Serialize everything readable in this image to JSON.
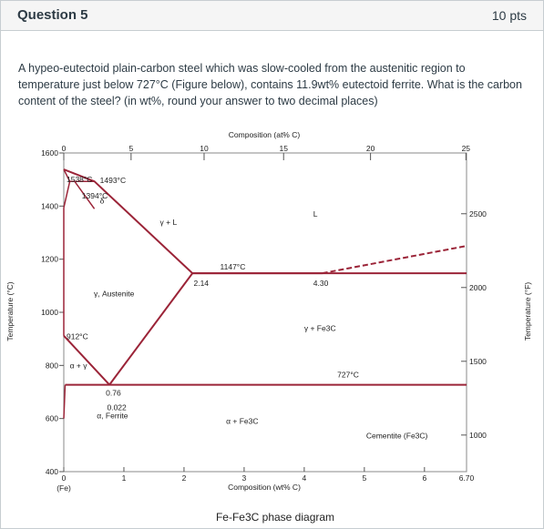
{
  "question": {
    "title": "Question 5",
    "points": "10 pts",
    "text": "A hypeo-eutectoid plain-carbon steel which was slow-cooled from the austenitic region to temperature just below 727°C (Figure below), contains 11.9wt% eutectoid ferrite.  What is the carbon content of the steel? (in wt%,  round your answer to two decimal places)"
  },
  "figure": {
    "caption": "Fe-Fe3C phase diagram",
    "top_axis_title": "Composition (at% C)",
    "bottom_axis_title": "Composition (wt% C)",
    "left_axis_title": "Temperature (°C)",
    "right_axis_title": "Temperature (°F)",
    "fe_label": "(Fe)"
  },
  "chart_data": {
    "type": "phase-diagram",
    "xlabel": "Composition (wt% C)",
    "ylabel": "Temperature (°C)",
    "xlim": [
      0,
      6.7
    ],
    "ylim": [
      400,
      1600
    ],
    "x_ticks": [
      0,
      1,
      2,
      3,
      4,
      5,
      6
    ],
    "y_ticks": [
      400,
      600,
      800,
      1000,
      1200,
      1400,
      1600
    ],
    "top_axis": {
      "label": "Composition (at% C)",
      "ticks": [
        0,
        5,
        10,
        15,
        20,
        25
      ]
    },
    "right_axis": {
      "label": "Temperature (°F)",
      "ticks": [
        1000,
        1500,
        2000,
        2500
      ]
    },
    "curves": {
      "liquidus": [
        [
          0,
          1538
        ],
        [
          0.51,
          1493
        ],
        [
          2.14,
          1147
        ],
        [
          4.3,
          1147
        ],
        [
          6.7,
          1250
        ]
      ],
      "austenite_solvus": [
        [
          0.76,
          727
        ],
        [
          2.14,
          1147
        ]
      ],
      "a3_line": [
        [
          0,
          912
        ],
        [
          0.76,
          727
        ]
      ],
      "ferrite_solvus": [
        [
          0.022,
          727
        ],
        [
          0,
          600
        ]
      ],
      "eutectic_line": [
        [
          2.14,
          1147
        ],
        [
          6.7,
          1147
        ]
      ],
      "eutectoid_line": [
        [
          0.022,
          727
        ],
        [
          6.7,
          727
        ]
      ],
      "delta_upper": [
        [
          0,
          1538
        ],
        [
          0.1,
          1493
        ],
        [
          0.51,
          1493
        ]
      ],
      "delta_lower": [
        [
          0,
          1394
        ],
        [
          0.1,
          1493
        ],
        [
          0.18,
          1493
        ],
        [
          0.51,
          1390
        ]
      ]
    },
    "point_labels": [
      "1538°C",
      "1493°C",
      "1394°C",
      "1147°C",
      "912°C",
      "727°C",
      "2.14",
      "4.30",
      "0.76",
      "0.022",
      "6.70"
    ],
    "region_labels": [
      "L",
      "δ",
      "γ + L",
      "γ, Austenite",
      "γ + Fe3C",
      "α + Fe3C",
      "α, Ferrite",
      "Cementite (Fe3C)",
      "α + γ"
    ]
  }
}
